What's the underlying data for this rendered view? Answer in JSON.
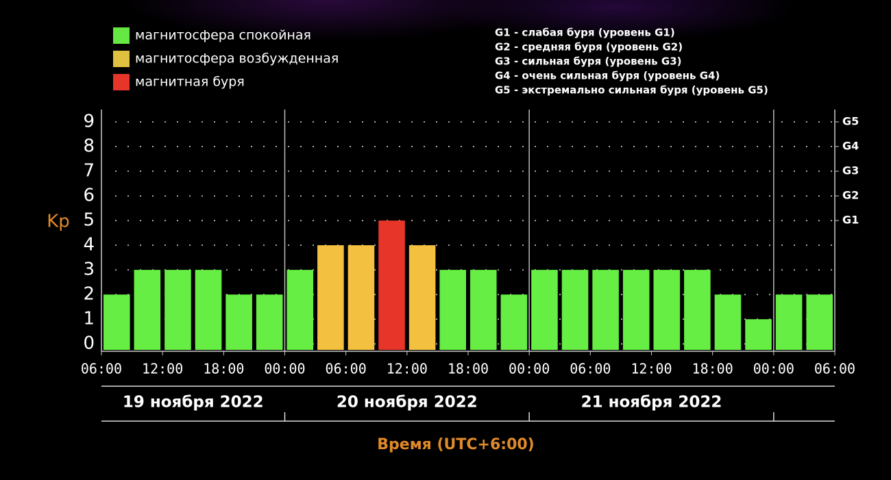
{
  "chart_data": {
    "type": "bar",
    "legend": [
      {
        "name": "магнитосфера спокойная",
        "color": "#66e844"
      },
      {
        "name": "магнитосфера возбужденная",
        "color": "#e0c040"
      },
      {
        "name": "магнитная буря",
        "color": "#e8352a"
      }
    ],
    "storm_levels": [
      "G1 - слабая буря (уровень G1)",
      "G2 - средняя буря (уровень G2)",
      "G3 - сильная буря (уровень G3)",
      "G4 - очень сильная буря (уровень G4)",
      "G5 - экстремально сильная буря (уровень G5)"
    ],
    "ylabel": "Kp",
    "xlabel": "Время (UTC+6:00)",
    "categories": [
      null,
      null,
      null,
      null,
      null,
      null,
      null,
      null,
      null,
      null,
      null,
      null,
      null,
      null,
      null,
      null,
      null,
      null,
      null,
      null,
      null,
      null,
      null,
      null
    ],
    "values": [
      2,
      3,
      3,
      3,
      2,
      2,
      3,
      4,
      4,
      5,
      4,
      3,
      3,
      2,
      3,
      3,
      3,
      3,
      3,
      3,
      2,
      1,
      2,
      2
    ],
    "colors": [
      "#66ee44",
      "#66ee44",
      "#66ee44",
      "#66ee44",
      "#66ee44",
      "#66ee44",
      "#66ee44",
      "#f4c040",
      "#f4c040",
      "#e8352a",
      "#f4c040",
      "#66ee44",
      "#66ee44",
      "#66ee44",
      "#66ee44",
      "#66ee44",
      "#66ee44",
      "#66ee44",
      "#66ee44",
      "#66ee44",
      "#66ee44",
      "#66ee44",
      "#66ee44",
      "#66ee44"
    ],
    "ylim": [
      -0.3,
      9.5
    ],
    "yticks": [
      0,
      1,
      2,
      3,
      4,
      5,
      6,
      7,
      8,
      9
    ],
    "y2lim": [
      -0.3,
      9.5
    ],
    "y2ticks": [
      {
        "value": 5,
        "label": "G1"
      },
      {
        "value": 6,
        "label": "G2"
      },
      {
        "value": 7,
        "label": "G3"
      },
      {
        "value": 8,
        "label": "G4"
      },
      {
        "value": 9,
        "label": "G5"
      }
    ],
    "grid": true,
    "xlim": [
      0,
      72
    ],
    "xticks": [
      {
        "value": 0,
        "label": "06:00"
      },
      {
        "value": 6,
        "label": "12:00"
      },
      {
        "value": 12,
        "label": "18:00"
      },
      {
        "value": 18,
        "label": "00:00"
      },
      {
        "value": 24,
        "label": "06:00"
      },
      {
        "value": 30,
        "label": "12:00"
      },
      {
        "value": 36,
        "label": "18:00"
      },
      {
        "value": 42,
        "label": "00:00"
      },
      {
        "value": 48,
        "label": "06:00"
      },
      {
        "value": 54,
        "label": "12:00"
      },
      {
        "value": 60,
        "label": "18:00"
      },
      {
        "value": 66,
        "label": "00:00"
      },
      {
        "value": 72,
        "label": "06:00"
      }
    ],
    "day_boundaries": [
      18,
      42,
      66
    ],
    "day_labels": [
      "19 ноября 2022",
      "20 ноября 2022",
      "21 ноября 2022"
    ]
  }
}
